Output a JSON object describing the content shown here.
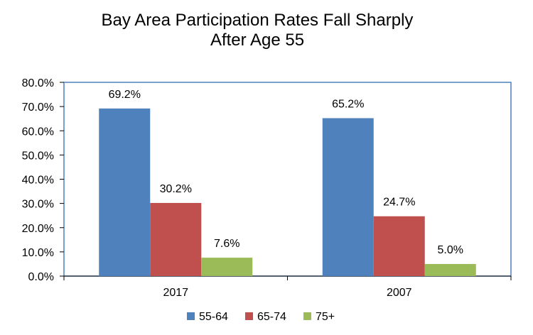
{
  "chart_data": {
    "type": "bar",
    "title_line1": "Bay Area Participation Rates Fall Sharply",
    "title_line2": "After Age 55",
    "categories": [
      "2017",
      "2007"
    ],
    "series": [
      {
        "name": "55-64",
        "values": [
          69.2,
          65.2
        ],
        "labels": [
          "69.2%",
          "65.2%"
        ],
        "color": "#4F81BD"
      },
      {
        "name": "65-74",
        "values": [
          30.2,
          24.7
        ],
        "labels": [
          "30.2%",
          "24.7%"
        ],
        "color": "#C0504D"
      },
      {
        "name": "75+",
        "values": [
          7.6,
          5.0
        ],
        "labels": [
          "7.6%",
          "5.0%"
        ],
        "color": "#9BBB59"
      }
    ],
    "ylim": [
      0,
      80
    ],
    "yticks": [
      0,
      10,
      20,
      30,
      40,
      50,
      60,
      70,
      80
    ],
    "ytick_labels": [
      "0.0%",
      "10.0%",
      "20.0%",
      "30.0%",
      "40.0%",
      "50.0%",
      "60.0%",
      "70.0%",
      "80.0%"
    ],
    "grid": false,
    "legend_position": "bottom",
    "border_color": "#4F81BD"
  }
}
